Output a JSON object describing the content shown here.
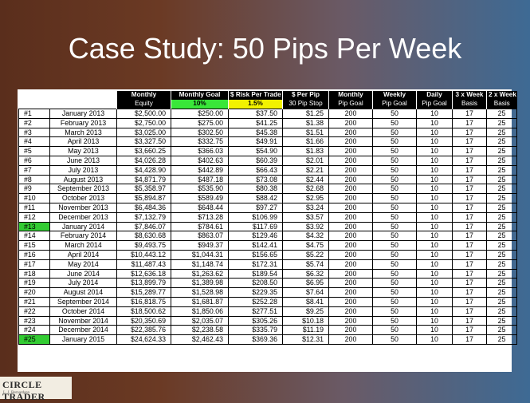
{
  "title": "Case Study: 50 Pips Per Week",
  "table": {
    "header_top": [
      "Monthly",
      "Monthly Goal",
      "$ Risk Per Trade",
      "$ Per Pip",
      "Monthly",
      "Weekly",
      "Daily",
      "3 x Week",
      "2 x Week"
    ],
    "header_sub": [
      "Equity",
      "10%",
      "1.5%",
      "30 Pip Stop",
      "Pip Goal",
      "Pip Goal",
      "Pip Goal",
      "Basis",
      "Basis"
    ],
    "highlight_color": "#33cc33",
    "rows": [
      {
        "idx": "#1",
        "month": "January 2013",
        "equity": "$2,500.00",
        "goal": "$250.00",
        "risk": "$37.50",
        "pip": "$1.25",
        "mpg": "200",
        "wpg": "50",
        "dpg": "10",
        "w3": "17",
        "w2": "25",
        "hl": false
      },
      {
        "idx": "#2",
        "month": "February 2013",
        "equity": "$2,750.00",
        "goal": "$275.00",
        "risk": "$41.25",
        "pip": "$1.38",
        "mpg": "200",
        "wpg": "50",
        "dpg": "10",
        "w3": "17",
        "w2": "25",
        "hl": false
      },
      {
        "idx": "#3",
        "month": "March 2013",
        "equity": "$3,025.00",
        "goal": "$302.50",
        "risk": "$45.38",
        "pip": "$1.51",
        "mpg": "200",
        "wpg": "50",
        "dpg": "10",
        "w3": "17",
        "w2": "25",
        "hl": false
      },
      {
        "idx": "#4",
        "month": "April 2013",
        "equity": "$3,327.50",
        "goal": "$332.75",
        "risk": "$49.91",
        "pip": "$1.66",
        "mpg": "200",
        "wpg": "50",
        "dpg": "10",
        "w3": "17",
        "w2": "25",
        "hl": false
      },
      {
        "idx": "#5",
        "month": "May 2013",
        "equity": "$3,660.25",
        "goal": "$366.03",
        "risk": "$54.90",
        "pip": "$1.83",
        "mpg": "200",
        "wpg": "50",
        "dpg": "10",
        "w3": "17",
        "w2": "25",
        "hl": false
      },
      {
        "idx": "#6",
        "month": "June 2013",
        "equity": "$4,026.28",
        "goal": "$402.63",
        "risk": "$60.39",
        "pip": "$2.01",
        "mpg": "200",
        "wpg": "50",
        "dpg": "10",
        "w3": "17",
        "w2": "25",
        "hl": false
      },
      {
        "idx": "#7",
        "month": "July 2013",
        "equity": "$4,428.90",
        "goal": "$442.89",
        "risk": "$66.43",
        "pip": "$2.21",
        "mpg": "200",
        "wpg": "50",
        "dpg": "10",
        "w3": "17",
        "w2": "25",
        "hl": false
      },
      {
        "idx": "#8",
        "month": "August 2013",
        "equity": "$4,871.79",
        "goal": "$487.18",
        "risk": "$73.08",
        "pip": "$2.44",
        "mpg": "200",
        "wpg": "50",
        "dpg": "10",
        "w3": "17",
        "w2": "25",
        "hl": false
      },
      {
        "idx": "#9",
        "month": "September 2013",
        "equity": "$5,358.97",
        "goal": "$535.90",
        "risk": "$80.38",
        "pip": "$2.68",
        "mpg": "200",
        "wpg": "50",
        "dpg": "10",
        "w3": "17",
        "w2": "25",
        "hl": false
      },
      {
        "idx": "#10",
        "month": "October 2013",
        "equity": "$5,894.87",
        "goal": "$589.49",
        "risk": "$88.42",
        "pip": "$2.95",
        "mpg": "200",
        "wpg": "50",
        "dpg": "10",
        "w3": "17",
        "w2": "25",
        "hl": false
      },
      {
        "idx": "#11",
        "month": "November 2013",
        "equity": "$6,484.36",
        "goal": "$648.44",
        "risk": "$97.27",
        "pip": "$3.24",
        "mpg": "200",
        "wpg": "50",
        "dpg": "10",
        "w3": "17",
        "w2": "25",
        "hl": false
      },
      {
        "idx": "#12",
        "month": "December 2013",
        "equity": "$7,132.79",
        "goal": "$713.28",
        "risk": "$106.99",
        "pip": "$3.57",
        "mpg": "200",
        "wpg": "50",
        "dpg": "10",
        "w3": "17",
        "w2": "25",
        "hl": false
      },
      {
        "idx": "#13",
        "month": "January 2014",
        "equity": "$7,846.07",
        "goal": "$784.61",
        "risk": "$117.69",
        "pip": "$3.92",
        "mpg": "200",
        "wpg": "50",
        "dpg": "10",
        "w3": "17",
        "w2": "25",
        "hl": true
      },
      {
        "idx": "#14",
        "month": "February 2014",
        "equity": "$8,630.68",
        "goal": "$863.07",
        "risk": "$129.46",
        "pip": "$4.32",
        "mpg": "200",
        "wpg": "50",
        "dpg": "10",
        "w3": "17",
        "w2": "25",
        "hl": false
      },
      {
        "idx": "#15",
        "month": "March 2014",
        "equity": "$9,493.75",
        "goal": "$949.37",
        "risk": "$142.41",
        "pip": "$4.75",
        "mpg": "200",
        "wpg": "50",
        "dpg": "10",
        "w3": "17",
        "w2": "25",
        "hl": false
      },
      {
        "idx": "#16",
        "month": "April 2014",
        "equity": "$10,443.12",
        "goal": "$1,044.31",
        "risk": "$156.65",
        "pip": "$5.22",
        "mpg": "200",
        "wpg": "50",
        "dpg": "10",
        "w3": "17",
        "w2": "25",
        "hl": false
      },
      {
        "idx": "#17",
        "month": "May 2014",
        "equity": "$11,487.43",
        "goal": "$1,148.74",
        "risk": "$172.31",
        "pip": "$5.74",
        "mpg": "200",
        "wpg": "50",
        "dpg": "10",
        "w3": "17",
        "w2": "25",
        "hl": false
      },
      {
        "idx": "#18",
        "month": "June 2014",
        "equity": "$12,636.18",
        "goal": "$1,263.62",
        "risk": "$189.54",
        "pip": "$6.32",
        "mpg": "200",
        "wpg": "50",
        "dpg": "10",
        "w3": "17",
        "w2": "25",
        "hl": false
      },
      {
        "idx": "#19",
        "month": "July 2014",
        "equity": "$13,899.79",
        "goal": "$1,389.98",
        "risk": "$208.50",
        "pip": "$6.95",
        "mpg": "200",
        "wpg": "50",
        "dpg": "10",
        "w3": "17",
        "w2": "25",
        "hl": false
      },
      {
        "idx": "#20",
        "month": "August 2014",
        "equity": "$15,289.77",
        "goal": "$1,528.98",
        "risk": "$229.35",
        "pip": "$7.64",
        "mpg": "200",
        "wpg": "50",
        "dpg": "10",
        "w3": "17",
        "w2": "25",
        "hl": false
      },
      {
        "idx": "#21",
        "month": "September 2014",
        "equity": "$16,818.75",
        "goal": "$1,681.87",
        "risk": "$252.28",
        "pip": "$8.41",
        "mpg": "200",
        "wpg": "50",
        "dpg": "10",
        "w3": "17",
        "w2": "25",
        "hl": false
      },
      {
        "idx": "#22",
        "month": "October 2014",
        "equity": "$18,500.62",
        "goal": "$1,850.06",
        "risk": "$277.51",
        "pip": "$9.25",
        "mpg": "200",
        "wpg": "50",
        "dpg": "10",
        "w3": "17",
        "w2": "25",
        "hl": false
      },
      {
        "idx": "#23",
        "month": "November 2014",
        "equity": "$20,350.69",
        "goal": "$2,035.07",
        "risk": "$305.26",
        "pip": "$10.18",
        "mpg": "200",
        "wpg": "50",
        "dpg": "10",
        "w3": "17",
        "w2": "25",
        "hl": false
      },
      {
        "idx": "#24",
        "month": "December 2014",
        "equity": "$22,385.76",
        "goal": "$2,238.58",
        "risk": "$335.79",
        "pip": "$11.19",
        "mpg": "200",
        "wpg": "50",
        "dpg": "10",
        "w3": "17",
        "w2": "25",
        "hl": false
      },
      {
        "idx": "#25",
        "month": "January 2015",
        "equity": "$24,624.33",
        "goal": "$2,462.43",
        "risk": "$369.36",
        "pip": "$12.31",
        "mpg": "200",
        "wpg": "50",
        "dpg": "10",
        "w3": "17",
        "w2": "25",
        "hl": true
      }
    ]
  },
  "logo": {
    "main": "CIRCLE TRADER",
    "sub": "L. J. Bernardson"
  }
}
